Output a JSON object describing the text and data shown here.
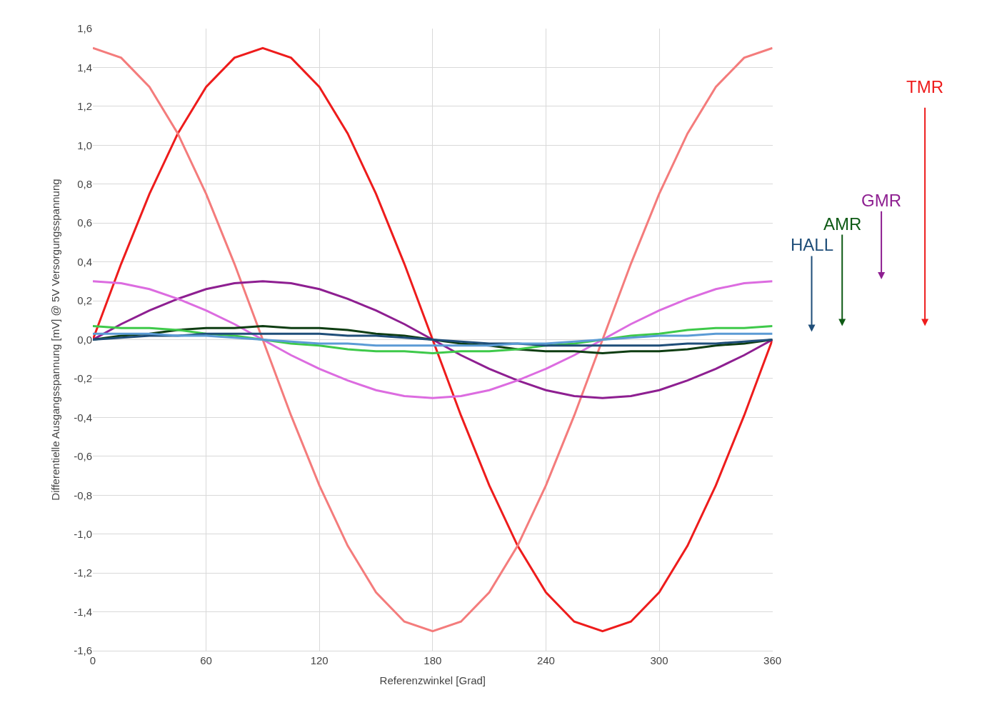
{
  "chart_data": {
    "type": "line",
    "xlabel": "Referenzwinkel [Grad]",
    "ylabel": "Differentielle Ausgangsspannung [mV] @ 5V Versorgungsspannung",
    "x": [
      0,
      15,
      30,
      45,
      60,
      75,
      90,
      105,
      120,
      135,
      150,
      165,
      180,
      195,
      210,
      225,
      240,
      255,
      270,
      285,
      300,
      315,
      330,
      345,
      360
    ],
    "series": [
      {
        "color": "#ee1c1c",
        "values": [
          0,
          0.39,
          0.75,
          1.06,
          1.3,
          1.45,
          1.5,
          1.45,
          1.3,
          1.06,
          0.75,
          0.39,
          0,
          -0.39,
          -0.75,
          -1.06,
          -1.3,
          -1.45,
          -1.5,
          -1.45,
          -1.3,
          -1.06,
          -0.75,
          -0.39,
          0
        ]
      },
      {
        "color": "#f47c7c",
        "values": [
          1.5,
          1.45,
          1.3,
          1.06,
          0.75,
          0.39,
          0,
          -0.39,
          -0.75,
          -1.06,
          -1.3,
          -1.45,
          -1.5,
          -1.45,
          -1.3,
          -1.06,
          -0.75,
          -0.39,
          0,
          0.39,
          0.75,
          1.06,
          1.3,
          1.45,
          1.5
        ]
      },
      {
        "color": "#8e1f91",
        "values": [
          0,
          0.08,
          0.15,
          0.21,
          0.26,
          0.29,
          0.3,
          0.29,
          0.26,
          0.21,
          0.15,
          0.08,
          0,
          -0.08,
          -0.15,
          -0.21,
          -0.26,
          -0.29,
          -0.3,
          -0.29,
          -0.26,
          -0.21,
          -0.15,
          -0.08,
          0
        ]
      },
      {
        "color": "#dc6ce0",
        "values": [
          0.3,
          0.29,
          0.26,
          0.21,
          0.15,
          0.08,
          0,
          -0.08,
          -0.15,
          -0.21,
          -0.26,
          -0.29,
          -0.3,
          -0.29,
          -0.26,
          -0.21,
          -0.15,
          -0.08,
          0,
          0.08,
          0.15,
          0.21,
          0.26,
          0.29,
          0.3
        ]
      },
      {
        "color": "#0e3d12",
        "values": [
          0,
          0.02,
          0.03,
          0.05,
          0.06,
          0.06,
          0.07,
          0.06,
          0.06,
          0.05,
          0.03,
          0.02,
          0,
          -0.02,
          -0.03,
          -0.05,
          -0.06,
          -0.06,
          -0.07,
          -0.06,
          -0.06,
          -0.05,
          -0.03,
          -0.02,
          0
        ]
      },
      {
        "color": "#3ec94a",
        "values": [
          0.07,
          0.06,
          0.06,
          0.05,
          0.03,
          0.02,
          0,
          -0.02,
          -0.03,
          -0.05,
          -0.06,
          -0.06,
          -0.07,
          -0.06,
          -0.06,
          -0.05,
          -0.03,
          -0.02,
          0,
          0.02,
          0.03,
          0.05,
          0.06,
          0.06,
          0.07
        ]
      },
      {
        "color": "#1f4e79",
        "values": [
          0,
          0.01,
          0.02,
          0.02,
          0.03,
          0.03,
          0.03,
          0.03,
          0.03,
          0.02,
          0.02,
          0.01,
          0,
          -0.01,
          -0.02,
          -0.02,
          -0.03,
          -0.03,
          -0.03,
          -0.03,
          -0.03,
          -0.02,
          -0.02,
          -0.01,
          0
        ]
      },
      {
        "color": "#5b9bd5",
        "values": [
          0.03,
          0.03,
          0.03,
          0.02,
          0.02,
          0.01,
          0,
          -0.01,
          -0.02,
          -0.02,
          -0.03,
          -0.03,
          -0.03,
          -0.03,
          -0.03,
          -0.02,
          -0.02,
          -0.01,
          0,
          0.01,
          0.02,
          0.02,
          0.03,
          0.03,
          0.03
        ]
      }
    ],
    "xlim": [
      0,
      360
    ],
    "xticks": [
      0,
      60,
      120,
      180,
      240,
      300,
      360
    ],
    "ylim": [
      -1.6,
      1.6
    ],
    "yticks": [
      {
        "value": -1.6,
        "label": "-1,6"
      },
      {
        "value": -1.4,
        "label": "-1,4"
      },
      {
        "value": -1.2,
        "label": "-1,2"
      },
      {
        "value": -1.0,
        "label": "-1,0"
      },
      {
        "value": -0.8,
        "label": "-0,8"
      },
      {
        "value": -0.6,
        "label": "-0,6"
      },
      {
        "value": -0.4,
        "label": "-0,4"
      },
      {
        "value": -0.2,
        "label": "-0,2"
      },
      {
        "value": 0,
        "label": "0,0"
      },
      {
        "value": 0.2,
        "label": "0,2"
      },
      {
        "value": 0.4,
        "label": "0,4"
      },
      {
        "value": 0.6,
        "label": "0,6"
      },
      {
        "value": 0.8,
        "label": "0,8"
      },
      {
        "value": 1.0,
        "label": "1,0"
      },
      {
        "value": 1.2,
        "label": "1,2"
      },
      {
        "value": 1.4,
        "label": "1,4"
      },
      {
        "value": 1.6,
        "label": "1,6"
      }
    ],
    "annotations": [
      "HALL",
      "AMR",
      "GMR",
      "TMR"
    ],
    "grid": true,
    "marker": "none",
    "line_style": "solid"
  }
}
